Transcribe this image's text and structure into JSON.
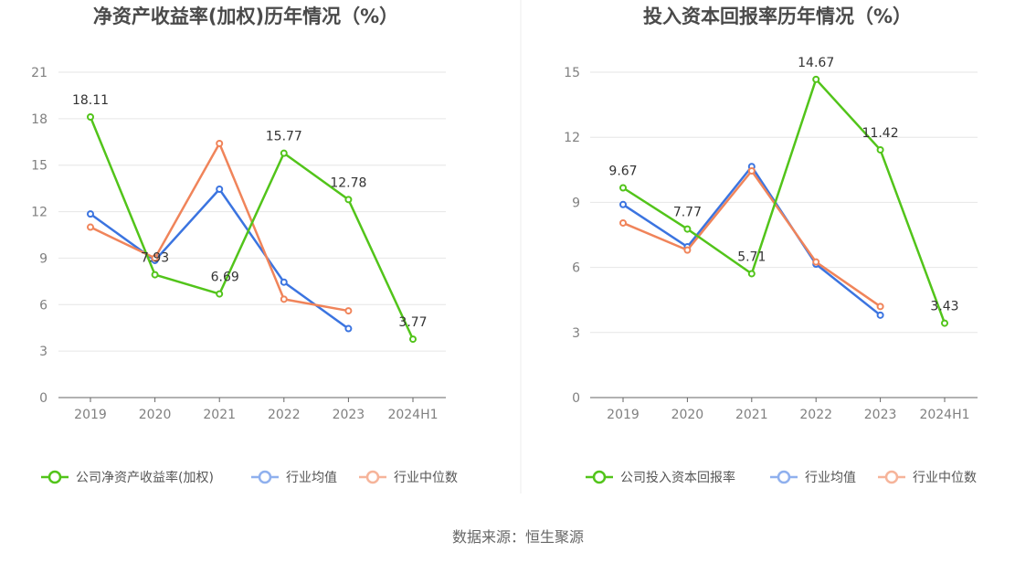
{
  "chart_data": [
    {
      "type": "line",
      "title": "净资产收益率(加权)历年情况（%）",
      "categories": [
        "2019",
        "2020",
        "2021",
        "2022",
        "2023",
        "2024H1"
      ],
      "ylim": [
        0,
        21
      ],
      "yticks": [
        "0",
        "3",
        "6",
        "9",
        "12",
        "15",
        "18",
        "21"
      ],
      "grid": true,
      "legend_position": "bottom",
      "series": [
        {
          "name": "公司净资产收益率(加权)",
          "color": "#52c41a",
          "values": [
            18.11,
            7.93,
            6.69,
            15.77,
            12.78,
            3.77
          ],
          "labels": [
            "18.11",
            "7.93",
            "6.69",
            "15.77",
            "12.78",
            "3.77"
          ]
        },
        {
          "name": "行业均值",
          "color": "#3b74e0",
          "values": [
            11.85,
            8.85,
            13.45,
            7.45,
            4.45,
            null
          ]
        },
        {
          "name": "行业中位数",
          "color": "#f0845a",
          "values": [
            11.0,
            9.0,
            16.4,
            6.35,
            5.6,
            null
          ]
        }
      ]
    },
    {
      "type": "line",
      "title": "投入资本回报率历年情况（%）",
      "categories": [
        "2019",
        "2020",
        "2021",
        "2022",
        "2023",
        "2024H1"
      ],
      "ylim": [
        0,
        15
      ],
      "yticks": [
        "0",
        "3",
        "6",
        "9",
        "12",
        "15"
      ],
      "grid": true,
      "legend_position": "bottom",
      "series": [
        {
          "name": "公司投入资本回报率",
          "color": "#52c41a",
          "values": [
            9.67,
            7.77,
            5.71,
            14.67,
            11.42,
            3.43
          ],
          "labels": [
            "9.67",
            "7.77",
            "5.71",
            "14.67",
            "11.42",
            "3.43"
          ]
        },
        {
          "name": "行业均值",
          "color": "#3b74e0",
          "values": [
            8.9,
            6.95,
            10.65,
            6.15,
            3.8,
            null
          ]
        },
        {
          "name": "行业中位数",
          "color": "#f0845a",
          "values": [
            8.05,
            6.8,
            10.45,
            6.25,
            4.2,
            null
          ]
        }
      ]
    }
  ],
  "footer": {
    "source": "数据来源：恒生聚源"
  }
}
